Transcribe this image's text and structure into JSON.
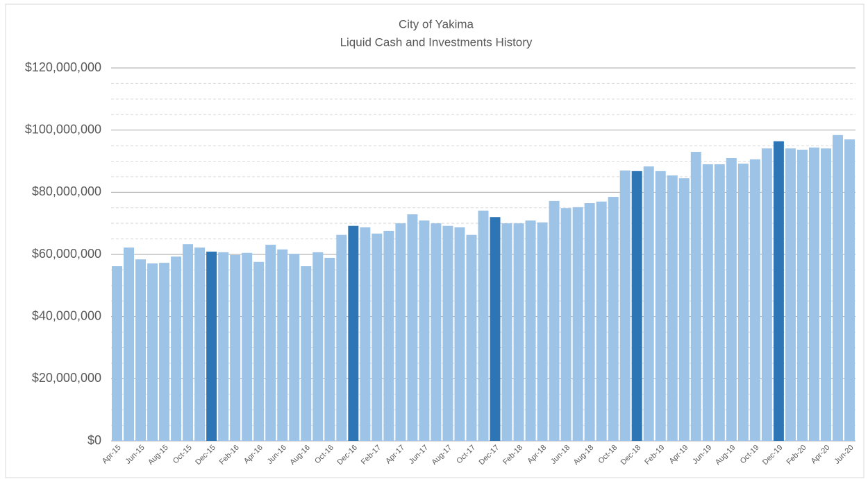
{
  "chart_data": {
    "type": "bar",
    "title": "City of Yakima",
    "subtitle": "Liquid Cash and Investments History",
    "categories": [
      "Apr-15",
      null,
      "Jun-15",
      null,
      "Aug-15",
      null,
      "Oct-15",
      null,
      "Dec-15",
      null,
      "Feb-16",
      null,
      "Apr-16",
      null,
      "Jun-16",
      null,
      "Aug-16",
      null,
      "Oct-16",
      null,
      "Dec-16",
      null,
      "Feb-17",
      null,
      "Apr-17",
      null,
      "Jun-17",
      null,
      "Aug-17",
      null,
      "Oct-17",
      null,
      "Dec-17",
      null,
      "Feb-18",
      null,
      "Apr-18",
      null,
      "Jun-18",
      null,
      "Aug-18",
      null,
      "Oct-18",
      null,
      "Dec-18",
      null,
      "Feb-19",
      null,
      "Apr-19",
      null,
      "Jun-19",
      null,
      "Aug-19",
      null,
      "Oct-19",
      null,
      "Dec-19",
      null,
      "Feb-20",
      null,
      "Apr-20",
      null,
      "Jun-20"
    ],
    "values": [
      56200000,
      62200000,
      58400000,
      57100000,
      57300000,
      59300000,
      63300000,
      62200000,
      60900000,
      60700000,
      59800000,
      60500000,
      57600000,
      63100000,
      61600000,
      60200000,
      56200000,
      60700000,
      58900000,
      66300000,
      69200000,
      68700000,
      66700000,
      67600000,
      70000000,
      72900000,
      70900000,
      70000000,
      69200000,
      68700000,
      66300000,
      74100000,
      72000000,
      70000000,
      70000000,
      70900000,
      70300000,
      77200000,
      74900000,
      75200000,
      76500000,
      77000000,
      78500000,
      87000000,
      86800000,
      88300000,
      86800000,
      85400000,
      84500000,
      93000000,
      89000000,
      89000000,
      91000000,
      89200000,
      90600000,
      94100000,
      96400000,
      94100000,
      93700000,
      94400000,
      94100000,
      98400000,
      97000000
    ],
    "colors": [
      "#9dc3e6",
      "#9dc3e6",
      "#9dc3e6",
      "#9dc3e6",
      "#9dc3e6",
      "#9dc3e6",
      "#9dc3e6",
      "#9dc3e6",
      "#2e75b6",
      "#9dc3e6",
      "#9dc3e6",
      "#9dc3e6",
      "#9dc3e6",
      "#9dc3e6",
      "#9dc3e6",
      "#9dc3e6",
      "#9dc3e6",
      "#9dc3e6",
      "#9dc3e6",
      "#9dc3e6",
      "#2e75b6",
      "#9dc3e6",
      "#9dc3e6",
      "#9dc3e6",
      "#9dc3e6",
      "#9dc3e6",
      "#9dc3e6",
      "#9dc3e6",
      "#9dc3e6",
      "#9dc3e6",
      "#9dc3e6",
      "#9dc3e6",
      "#2e75b6",
      "#9dc3e6",
      "#9dc3e6",
      "#9dc3e6",
      "#9dc3e6",
      "#9dc3e6",
      "#9dc3e6",
      "#9dc3e6",
      "#9dc3e6",
      "#9dc3e6",
      "#9dc3e6",
      "#9dc3e6",
      "#2e75b6",
      "#9dc3e6",
      "#9dc3e6",
      "#9dc3e6",
      "#9dc3e6",
      "#9dc3e6",
      "#9dc3e6",
      "#9dc3e6",
      "#9dc3e6",
      "#9dc3e6",
      "#9dc3e6",
      "#9dc3e6",
      "#2e75b6",
      "#9dc3e6",
      "#9dc3e6",
      "#9dc3e6",
      "#9dc3e6",
      "#9dc3e6",
      "#9dc3e6"
    ],
    "ylim": [
      0,
      120000000
    ],
    "yticks": [
      {
        "value": 0,
        "label": "$0"
      },
      {
        "value": 20000000,
        "label": "$20,000,000"
      },
      {
        "value": 40000000,
        "label": "$40,000,000"
      },
      {
        "value": 60000000,
        "label": "$60,000,000"
      },
      {
        "value": 80000000,
        "label": "$80,000,000"
      },
      {
        "value": 100000000,
        "label": "$100,000,000"
      },
      {
        "value": 120000000,
        "label": "$120,000,000"
      }
    ],
    "yticks_minor": [
      5000000,
      10000000,
      15000000,
      25000000,
      30000000,
      35000000,
      45000000,
      50000000,
      55000000,
      65000000,
      70000000,
      75000000,
      85000000,
      90000000,
      95000000,
      105000000,
      110000000,
      115000000
    ],
    "grid": true
  }
}
